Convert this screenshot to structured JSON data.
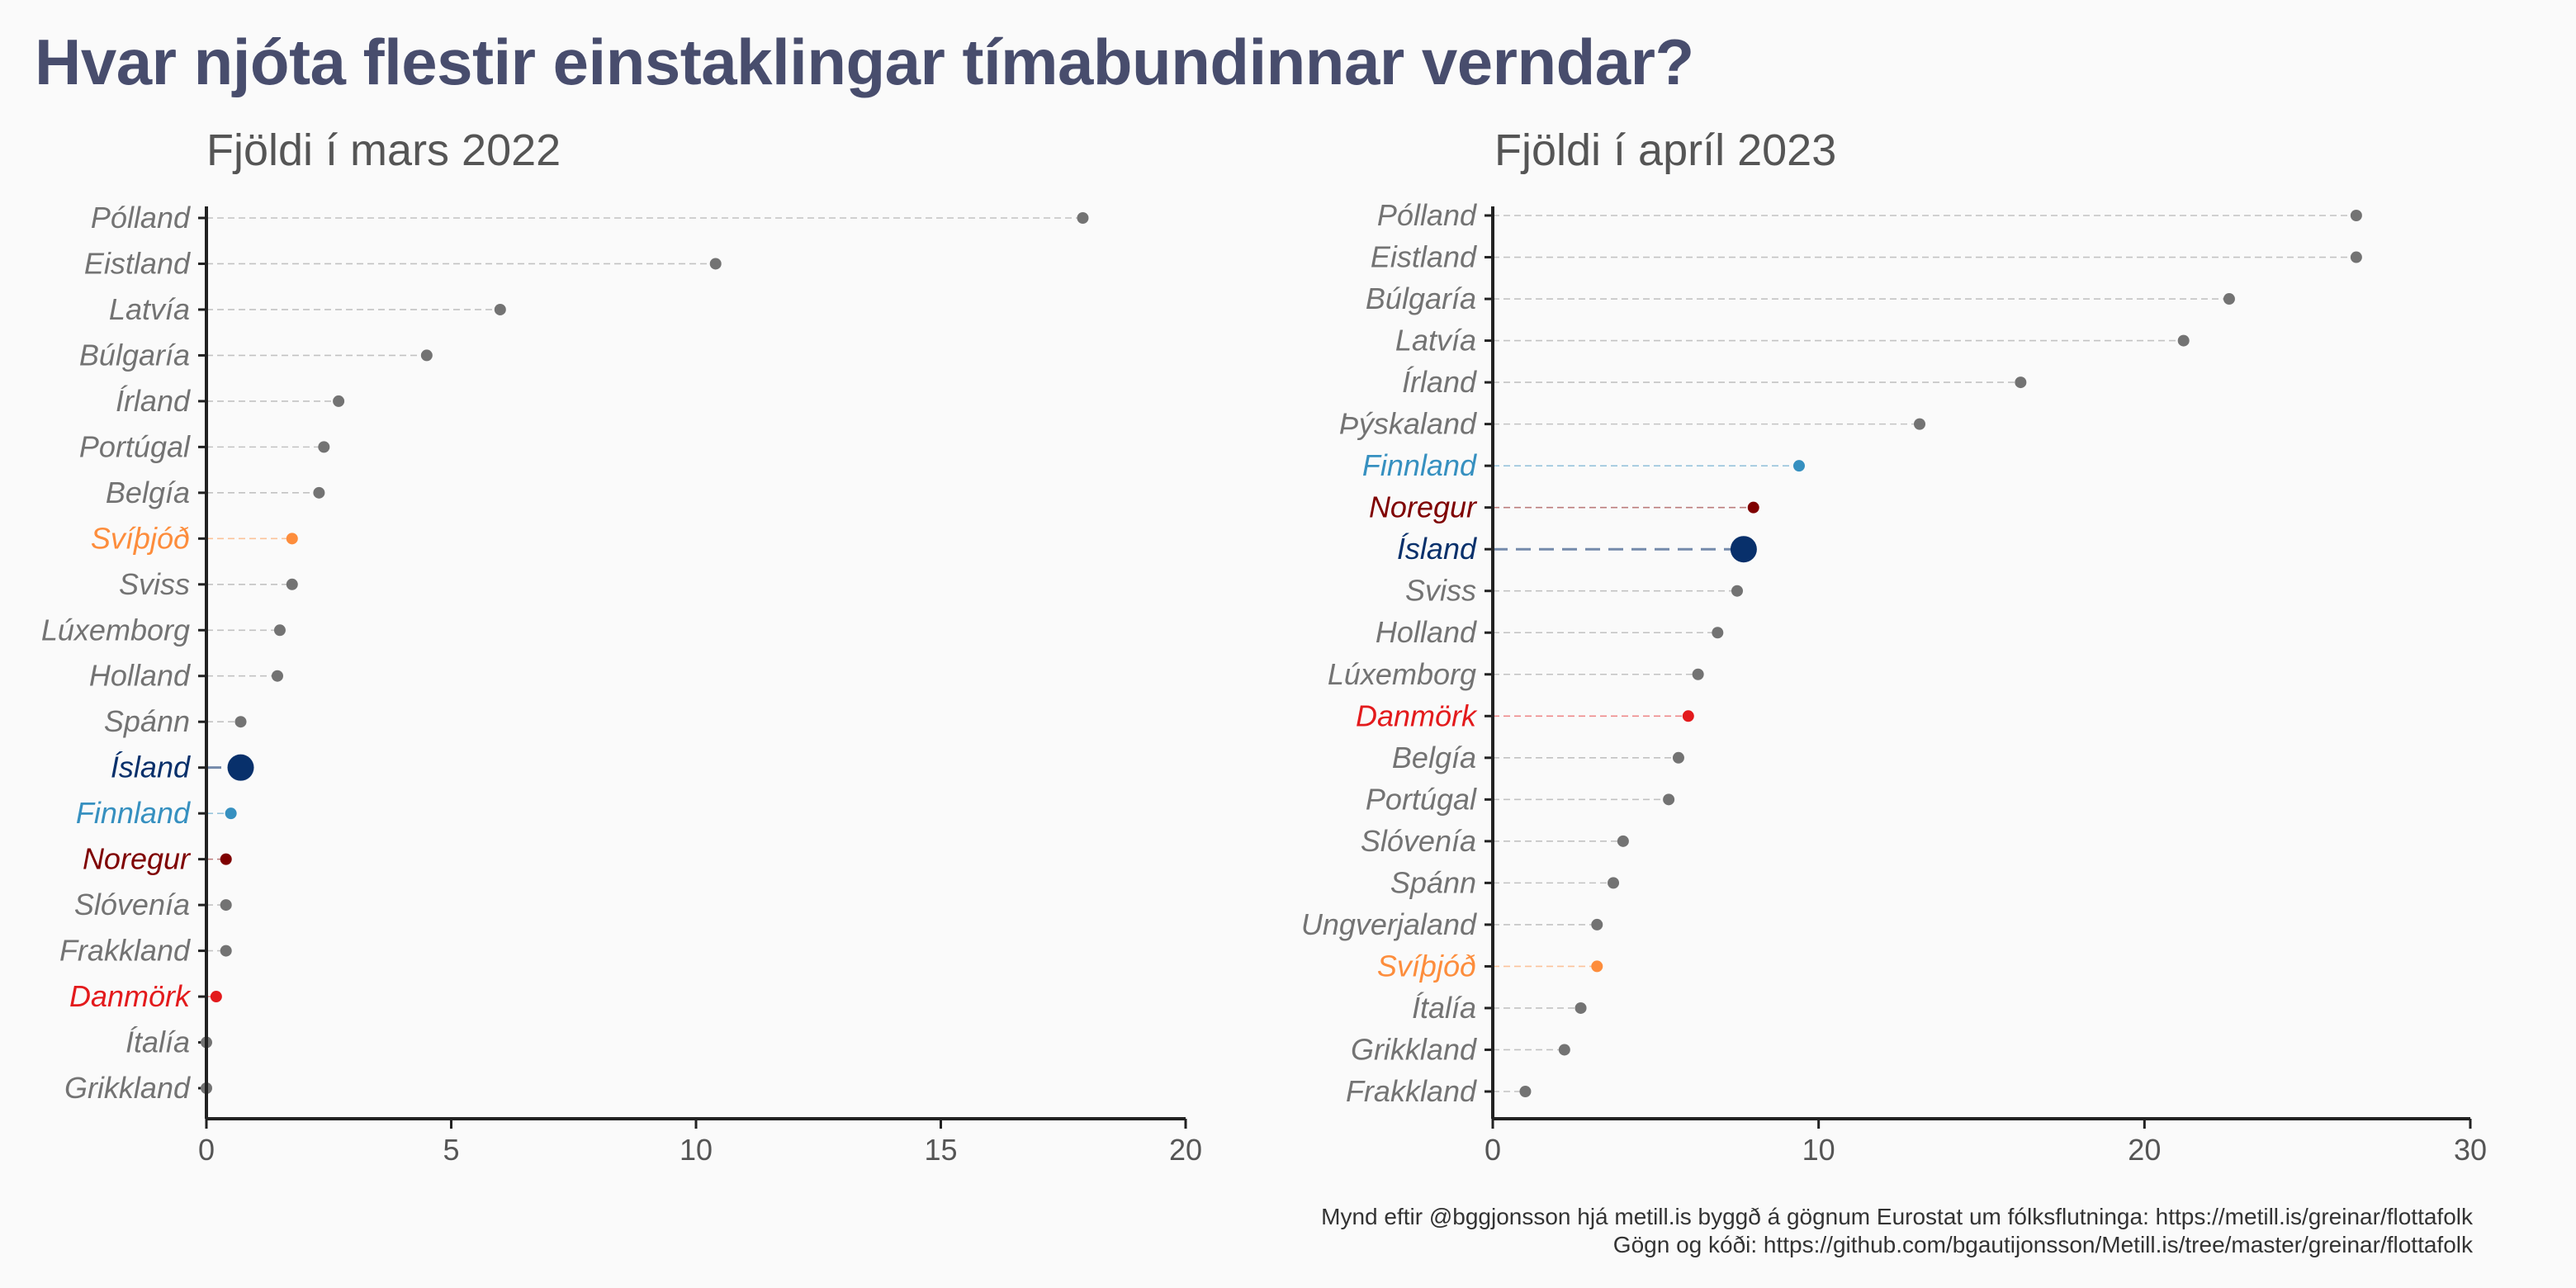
{
  "title": "Hvar njóta flestir einstaklingar tímabundinnar verndar?",
  "caption_line1": "Mynd eftir @bggjonsson hjá metill.is byggð á gögnum Eurostat um fólksflutninga: https://metill.is/greinar/flottafolk",
  "caption_line2": "Gögn og kóði: https://github.com/bgautijonsson/Metill.is/tree/master/greinar/flottafolk",
  "colors": {
    "default_point": "#737373",
    "default_label": "#737373",
    "Ísland": "#08306b",
    "Finnland": "#3690c0",
    "Noregur": "#7f0000",
    "Danmörk": "#e31a1c",
    "Svíþjóð": "#fd8d3c",
    "axis": "#222222",
    "tick_text": "#555555",
    "panel_title": "#555555"
  },
  "chart_data": [
    {
      "type": "dot",
      "title": "Fjöldi í mars 2022",
      "xlabel": "",
      "ylabel": "",
      "xlim": [
        0,
        20
      ],
      "xticks": [
        0,
        5,
        10,
        15,
        20
      ],
      "grid": false,
      "categories": [
        "Pólland",
        "Eistland",
        "Latvía",
        "Búlgaría",
        "Írland",
        "Portúgal",
        "Belgía",
        "Svíþjóð",
        "Sviss",
        "Lúxemborg",
        "Holland",
        "Spánn",
        "Ísland",
        "Finnland",
        "Noregur",
        "Slóvenía",
        "Frakkland",
        "Danmörk",
        "Ítalía",
        "Grikkland"
      ],
      "values": [
        17.9,
        10.4,
        6.0,
        4.5,
        2.7,
        2.4,
        2.3,
        1.75,
        1.75,
        1.5,
        1.45,
        0.7,
        0.7,
        0.5,
        0.4,
        0.4,
        0.4,
        0.2,
        0.0,
        0.0
      ]
    },
    {
      "type": "dot",
      "title": "Fjöldi í apríl 2023",
      "xlabel": "",
      "ylabel": "",
      "xlim": [
        0,
        30
      ],
      "xticks": [
        0,
        10,
        20,
        30
      ],
      "grid": false,
      "categories": [
        "Pólland",
        "Eistland",
        "Búlgaría",
        "Latvía",
        "Írland",
        "Þýskaland",
        "Finnland",
        "Noregur",
        "Ísland",
        "Sviss",
        "Holland",
        "Lúxemborg",
        "Danmörk",
        "Belgía",
        "Portúgal",
        "Slóvenía",
        "Spánn",
        "Ungverjaland",
        "Svíþjóð",
        "Ítalía",
        "Grikkland",
        "Frakkland"
      ],
      "values": [
        26.5,
        26.5,
        22.6,
        21.2,
        16.2,
        13.1,
        9.4,
        8.0,
        7.7,
        7.5,
        6.9,
        6.3,
        6.0,
        5.7,
        5.4,
        4.0,
        3.7,
        3.2,
        3.2,
        2.7,
        2.2,
        1.0
      ]
    }
  ]
}
